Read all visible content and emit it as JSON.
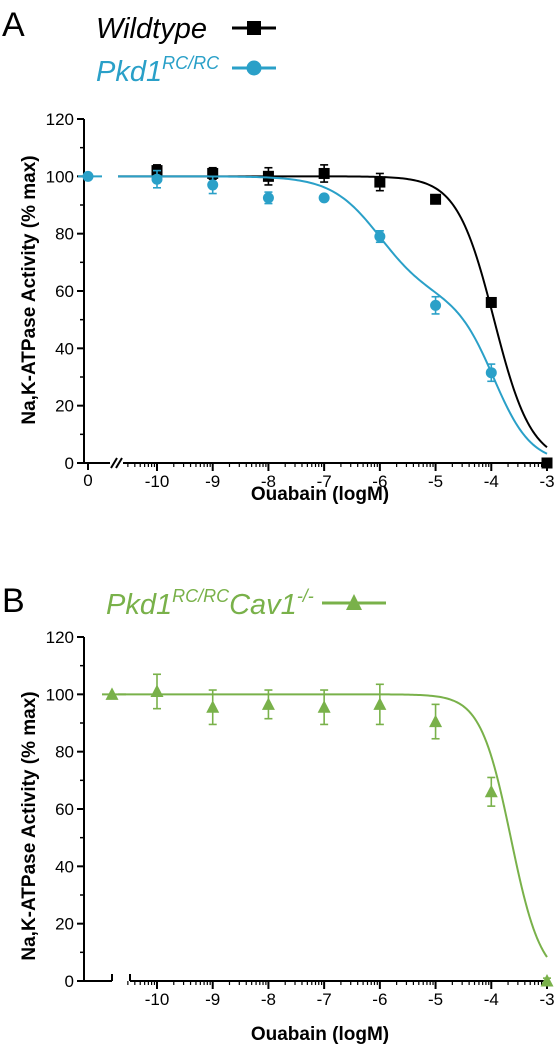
{
  "chart_data": [
    {
      "panel": "A",
      "type": "scatter",
      "xlabel": "Ouabain (logM)",
      "ylabel": "Na,K-ATPase Activity (% max)",
      "ylim": [
        0,
        120
      ],
      "yticks": [
        "0",
        "20",
        "40",
        "60",
        "80",
        "100",
        "120"
      ],
      "xlim": [
        -10.5,
        -3
      ],
      "xticks": [
        "-10",
        "-9",
        "-8",
        "-7",
        "-6",
        "-5",
        "-4",
        "-3"
      ],
      "x_zero_label": "0",
      "axis_break": true,
      "legend_placement": "top-left, above plot",
      "series": [
        {
          "name": "Wildtype",
          "name_sup": "",
          "color": "#000000",
          "marker": "square",
          "x": [
            -10,
            -9,
            -8,
            -7,
            -6,
            -5,
            -4,
            -3
          ],
          "y": [
            102,
            101,
            100,
            101,
            98,
            92,
            56,
            0
          ],
          "err": [
            2,
            2,
            3,
            3,
            3,
            1,
            1,
            1
          ],
          "zero_point": null,
          "fit": {
            "kind": "single",
            "top": 100,
            "bottom": 0,
            "logIC50": -3.95,
            "hill": 1.3
          }
        },
        {
          "name": "Pkd1",
          "name_sup": "RC/RC",
          "color": "#2aa0c8",
          "marker": "circle",
          "x": [
            -10,
            -9,
            -8,
            -7,
            -6,
            -5,
            -4
          ],
          "y": [
            99,
            97,
            92.5,
            92.5,
            79,
            55,
            31.5
          ],
          "err": [
            3,
            3,
            2,
            1,
            2,
            3,
            3
          ],
          "zero_point": 100,
          "fit": {
            "kind": "biphasic",
            "top": 100,
            "bottom": 0,
            "frac1": 0.42,
            "logIC50_1": -6.0,
            "logIC50_2": -3.95,
            "hill1": 1.0,
            "hill2": 1.3
          }
        }
      ]
    },
    {
      "panel": "B",
      "type": "scatter",
      "xlabel": "Ouabain (logM)",
      "ylabel": "Na,K-ATPase Activity (% max)",
      "ylim": [
        0,
        120
      ],
      "yticks": [
        "0",
        "20",
        "40",
        "60",
        "80",
        "100",
        "120"
      ],
      "xlim": [
        -10.5,
        -3
      ],
      "xticks": [
        "-10",
        "-9",
        "-8",
        "-7",
        "-6",
        "-5",
        "-4",
        "-3"
      ],
      "axis_break": true,
      "legend_placement": "top-left, above plot",
      "series": [
        {
          "name": "Pkd1",
          "name_sup": "RC/RC",
          "name2": "Cav1",
          "name2_sup": "-/-",
          "color": "#79b14a",
          "marker": "triangle",
          "x": [
            -10,
            -9,
            -8,
            -7,
            -6,
            -5,
            -4,
            -3
          ],
          "y": [
            101,
            95.5,
            96.5,
            95.5,
            96.5,
            90.5,
            66,
            0
          ],
          "err": [
            6,
            6,
            5,
            6,
            7,
            6,
            5,
            1
          ],
          "zero_point": 100,
          "fit": {
            "kind": "single",
            "top": 100,
            "bottom": 0,
            "logIC50": -3.65,
            "hill": 1.6
          }
        }
      ]
    }
  ],
  "panel_labels": [
    "A",
    "B"
  ]
}
